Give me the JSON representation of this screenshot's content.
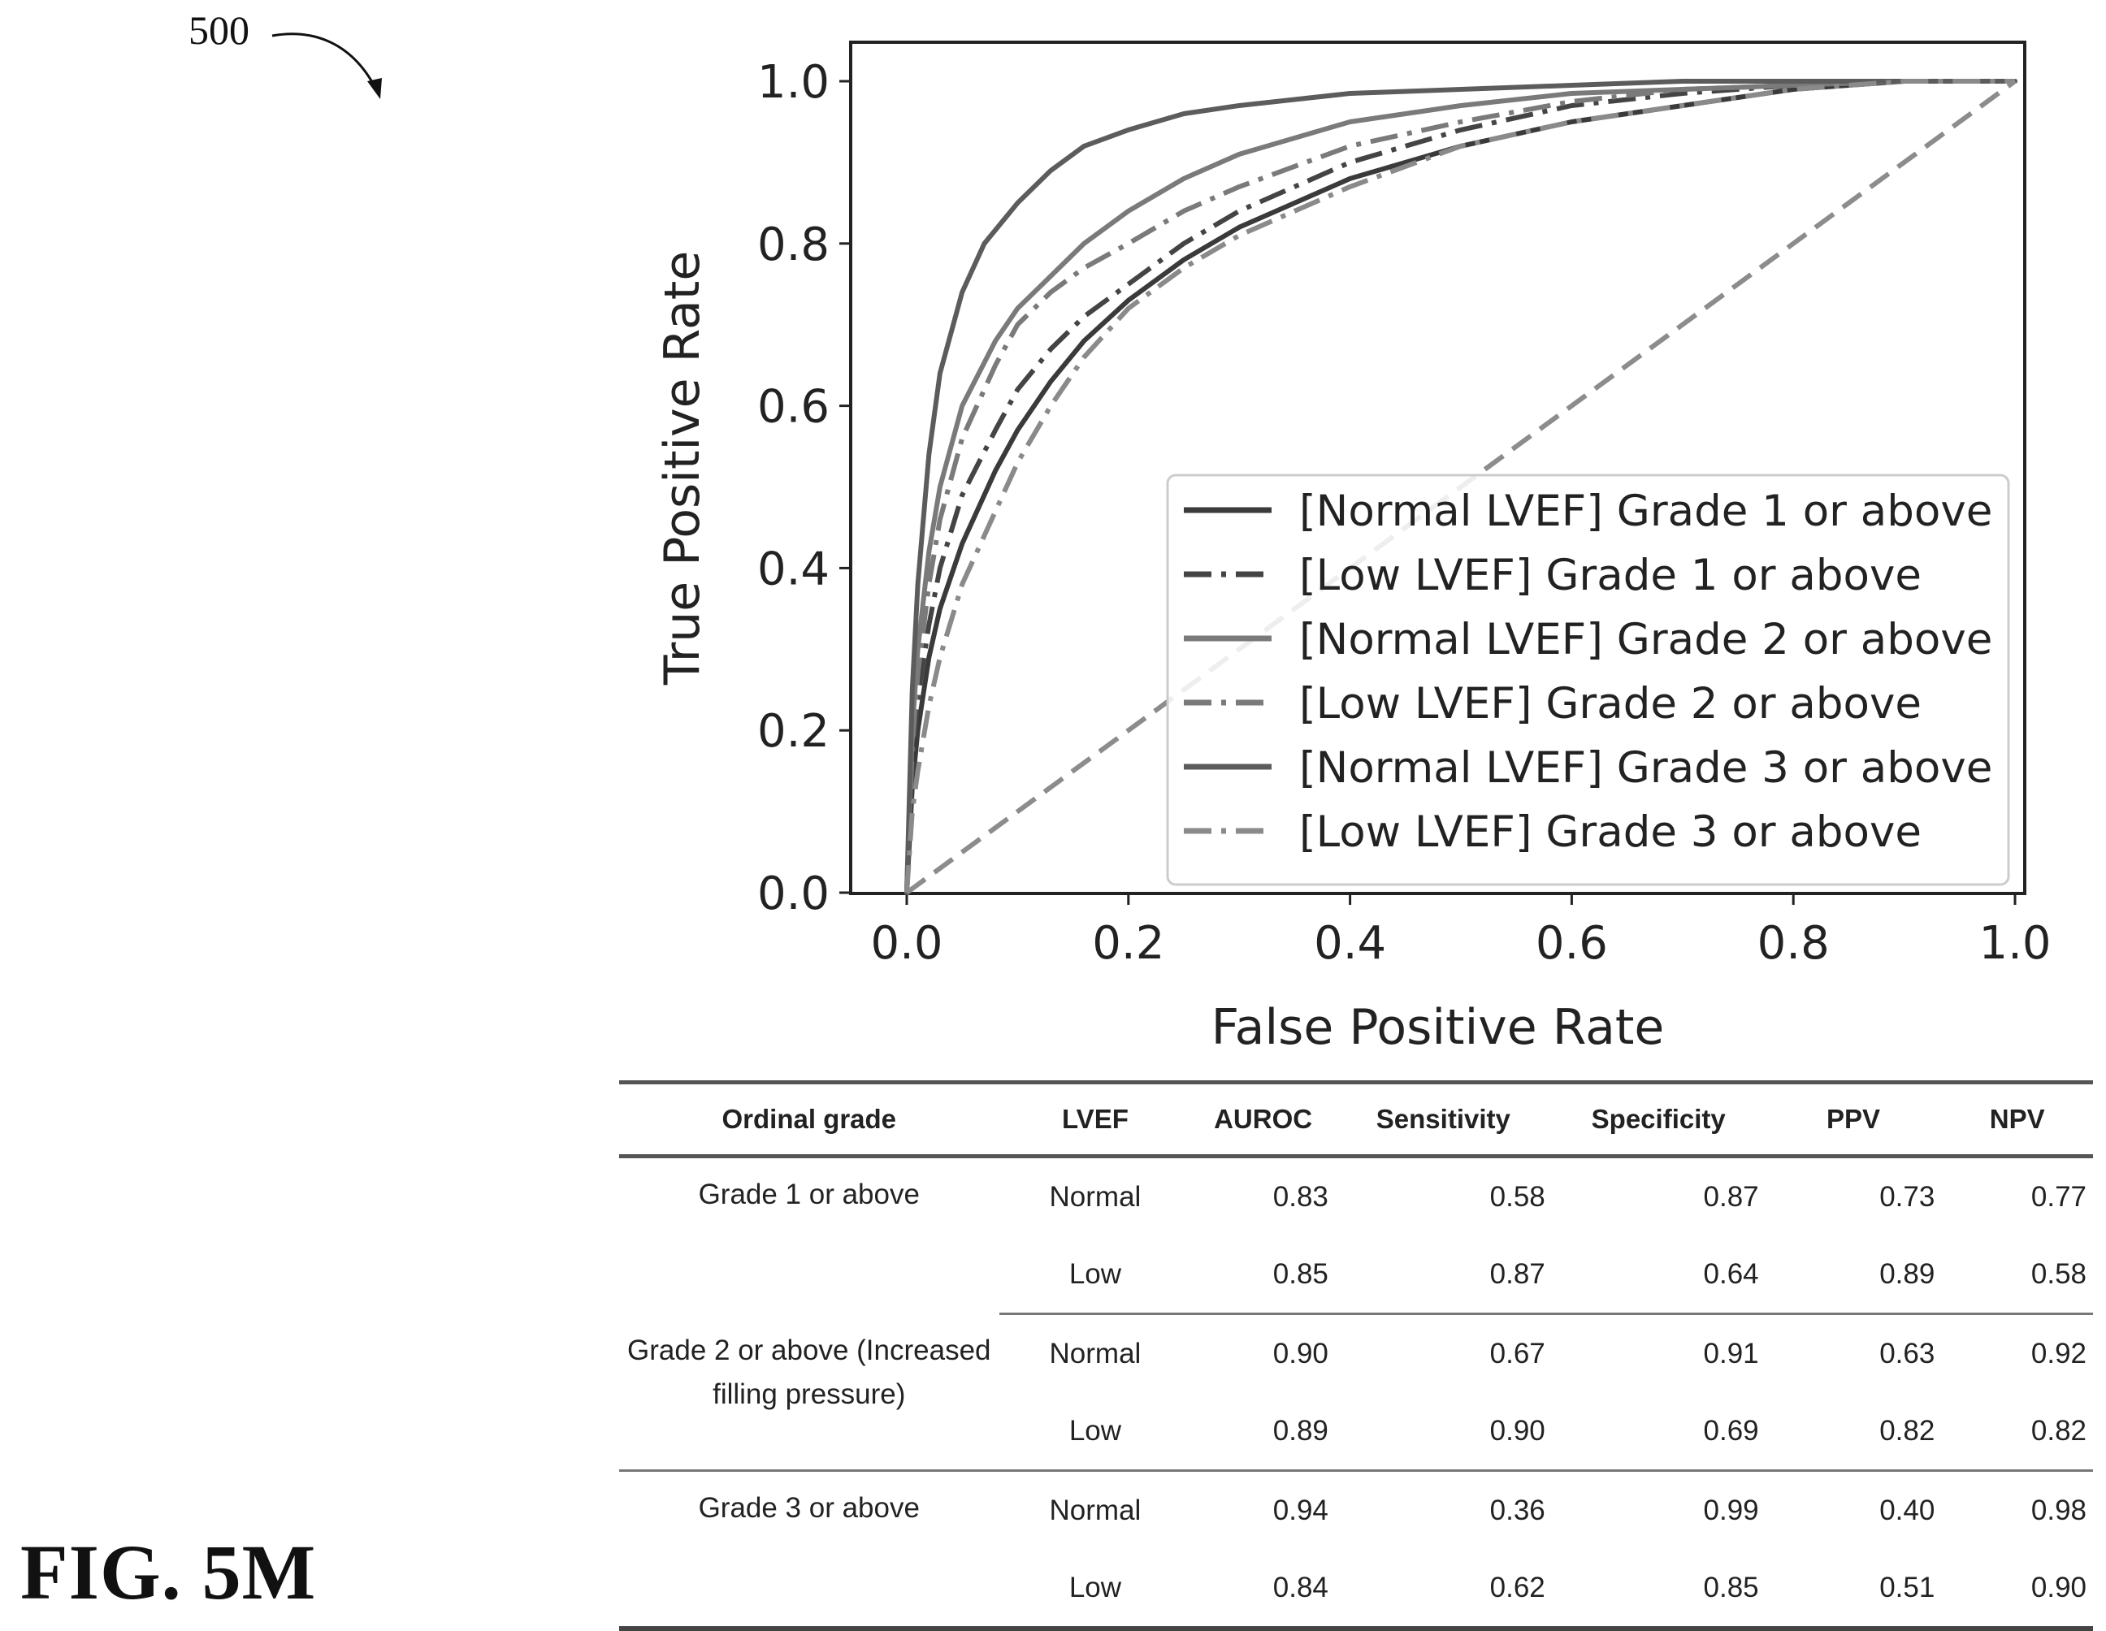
{
  "figure": {
    "ref_number": "500",
    "fig_label": "FIG. 5M"
  },
  "chart_data": {
    "type": "line",
    "xlabel": "False Positive Rate",
    "ylabel": "True Positive Rate",
    "xlim": [
      0,
      1
    ],
    "ylim": [
      0,
      1
    ],
    "xticks": [
      "0.0",
      "0.2",
      "0.4",
      "0.6",
      "0.8",
      "1.0"
    ],
    "yticks": [
      "0.0",
      "0.2",
      "0.4",
      "0.6",
      "0.8",
      "1.0"
    ],
    "grid": false,
    "legend_position": "lower-right",
    "series": [
      {
        "name": "[Normal LVEF] Grade 1 or above",
        "style": "solid",
        "color": "#3a3a3a",
        "x": [
          0,
          0.005,
          0.01,
          0.02,
          0.03,
          0.05,
          0.08,
          0.1,
          0.13,
          0.16,
          0.2,
          0.25,
          0.3,
          0.4,
          0.5,
          0.6,
          0.7,
          0.8,
          0.9,
          1.0
        ],
        "y": [
          0,
          0.13,
          0.2,
          0.29,
          0.35,
          0.43,
          0.52,
          0.57,
          0.63,
          0.68,
          0.73,
          0.78,
          0.82,
          0.88,
          0.92,
          0.95,
          0.97,
          0.99,
          1.0,
          1.0
        ]
      },
      {
        "name": "[Low LVEF] Grade 1 or above",
        "style": "dashdot",
        "color": "#444444",
        "x": [
          0,
          0.005,
          0.01,
          0.02,
          0.03,
          0.05,
          0.08,
          0.1,
          0.13,
          0.16,
          0.2,
          0.25,
          0.3,
          0.4,
          0.5,
          0.6,
          0.7,
          0.8,
          0.9,
          1.0
        ],
        "y": [
          0,
          0.16,
          0.24,
          0.33,
          0.4,
          0.49,
          0.57,
          0.62,
          0.67,
          0.71,
          0.75,
          0.8,
          0.84,
          0.9,
          0.94,
          0.97,
          0.985,
          0.995,
          1.0,
          1.0
        ]
      },
      {
        "name": "[Normal LVEF] Grade 2 or above",
        "style": "solid",
        "color": "#7a7a7a",
        "x": [
          0,
          0.005,
          0.01,
          0.02,
          0.03,
          0.05,
          0.08,
          0.1,
          0.13,
          0.16,
          0.2,
          0.25,
          0.3,
          0.4,
          0.5,
          0.6,
          0.7,
          0.8,
          0.9,
          1.0
        ],
        "y": [
          0,
          0.2,
          0.3,
          0.42,
          0.5,
          0.6,
          0.68,
          0.72,
          0.76,
          0.8,
          0.84,
          0.88,
          0.91,
          0.95,
          0.97,
          0.985,
          0.99,
          0.995,
          1.0,
          1.0
        ]
      },
      {
        "name": "[Low LVEF] Grade 2 or above",
        "style": "dashdot",
        "color": "#7a7a7a",
        "x": [
          0,
          0.005,
          0.01,
          0.02,
          0.03,
          0.05,
          0.08,
          0.1,
          0.13,
          0.16,
          0.2,
          0.25,
          0.3,
          0.4,
          0.5,
          0.6,
          0.7,
          0.8,
          0.9,
          1.0
        ],
        "y": [
          0,
          0.18,
          0.27,
          0.38,
          0.46,
          0.56,
          0.65,
          0.7,
          0.74,
          0.77,
          0.8,
          0.84,
          0.87,
          0.92,
          0.95,
          0.975,
          0.99,
          0.995,
          1.0,
          1.0
        ]
      },
      {
        "name": "[Normal LVEF] Grade 3 or above",
        "style": "solid",
        "color": "#5c5c5c",
        "x": [
          0,
          0.005,
          0.01,
          0.02,
          0.03,
          0.05,
          0.07,
          0.1,
          0.13,
          0.16,
          0.2,
          0.25,
          0.3,
          0.4,
          0.5,
          0.6,
          0.7,
          0.8,
          0.9,
          1.0
        ],
        "y": [
          0,
          0.25,
          0.38,
          0.54,
          0.64,
          0.74,
          0.8,
          0.85,
          0.89,
          0.92,
          0.94,
          0.96,
          0.97,
          0.985,
          0.99,
          0.995,
          1.0,
          1.0,
          1.0,
          1.0
        ]
      },
      {
        "name": "[Low LVEF] Grade 3 or above",
        "style": "dashdot",
        "color": "#8a8a8a",
        "x": [
          0,
          0.005,
          0.01,
          0.02,
          0.03,
          0.05,
          0.08,
          0.1,
          0.13,
          0.16,
          0.2,
          0.25,
          0.3,
          0.4,
          0.5,
          0.6,
          0.7,
          0.8,
          0.9,
          1.0
        ],
        "y": [
          0,
          0.1,
          0.15,
          0.23,
          0.29,
          0.38,
          0.47,
          0.53,
          0.6,
          0.66,
          0.72,
          0.77,
          0.81,
          0.87,
          0.92,
          0.95,
          0.97,
          0.99,
          1.0,
          1.0
        ]
      },
      {
        "name": "",
        "style": "dashed",
        "color": "#8c8c8c",
        "x": [
          0,
          1
        ],
        "y": [
          0,
          1
        ]
      }
    ]
  },
  "table": {
    "headers": [
      "Ordinal grade",
      "LVEF",
      "AUROC",
      "Sensitivity",
      "Specificity",
      "PPV",
      "NPV"
    ],
    "groups": [
      {
        "grade": "Grade 1 or above",
        "rows": [
          {
            "lvef": "Normal",
            "auroc": "0.83",
            "sensitivity": "0.58",
            "specificity": "0.87",
            "ppv": "0.73",
            "npv": "0.77"
          },
          {
            "lvef": "Low",
            "auroc": "0.85",
            "sensitivity": "0.87",
            "specificity": "0.64",
            "ppv": "0.89",
            "npv": "0.58"
          }
        ]
      },
      {
        "grade": "Grade 2 or above (Increased filling pressure)",
        "rows": [
          {
            "lvef": "Normal",
            "auroc": "0.90",
            "sensitivity": "0.67",
            "specificity": "0.91",
            "ppv": "0.63",
            "npv": "0.92"
          },
          {
            "lvef": "Low",
            "auroc": "0.89",
            "sensitivity": "0.90",
            "specificity": "0.69",
            "ppv": "0.82",
            "npv": "0.82"
          }
        ]
      },
      {
        "grade": "Grade 3 or above",
        "rows": [
          {
            "lvef": "Normal",
            "auroc": "0.94",
            "sensitivity": "0.36",
            "specificity": "0.99",
            "ppv": "0.40",
            "npv": "0.98"
          },
          {
            "lvef": "Low",
            "auroc": "0.84",
            "sensitivity": "0.62",
            "specificity": "0.85",
            "ppv": "0.51",
            "npv": "0.90"
          }
        ]
      }
    ]
  }
}
